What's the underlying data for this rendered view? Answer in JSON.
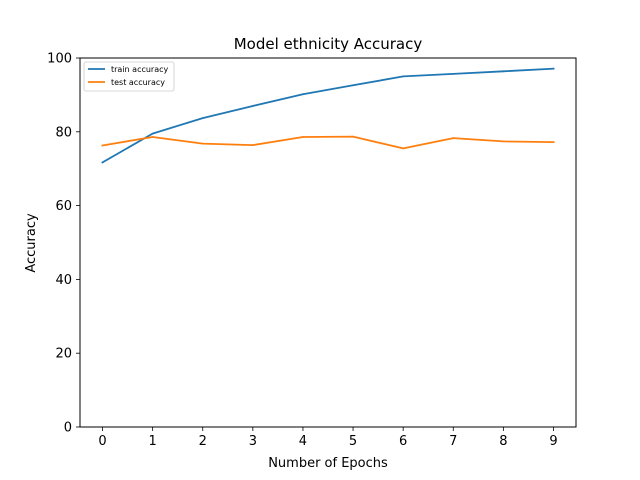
{
  "chart_data": {
    "type": "line",
    "title": "Model ethnicity Accuracy",
    "xlabel": "Number of Epochs",
    "ylabel": "Accuracy",
    "x": [
      0,
      1,
      2,
      3,
      4,
      5,
      6,
      7,
      8,
      9
    ],
    "xticks": [
      "0",
      "1",
      "2",
      "3",
      "4",
      "5",
      "6",
      "7",
      "8",
      "9"
    ],
    "yticks": [
      "0",
      "20",
      "40",
      "60",
      "80",
      "100"
    ],
    "xlim": [
      -0.45,
      9.45
    ],
    "ylim": [
      0,
      100
    ],
    "grid": false,
    "legend_position": "upper-left",
    "series": [
      {
        "name": "train accuracy",
        "color": "#1f77b4",
        "values": [
          71.7,
          79.5,
          83.7,
          87.0,
          90.2,
          92.6,
          95.0,
          95.7,
          96.4,
          97.1
        ]
      },
      {
        "name": "test accuracy",
        "color": "#ff7f0e",
        "values": [
          76.3,
          78.6,
          76.8,
          76.4,
          78.6,
          78.7,
          75.5,
          78.3,
          77.4,
          77.2
        ]
      }
    ]
  }
}
